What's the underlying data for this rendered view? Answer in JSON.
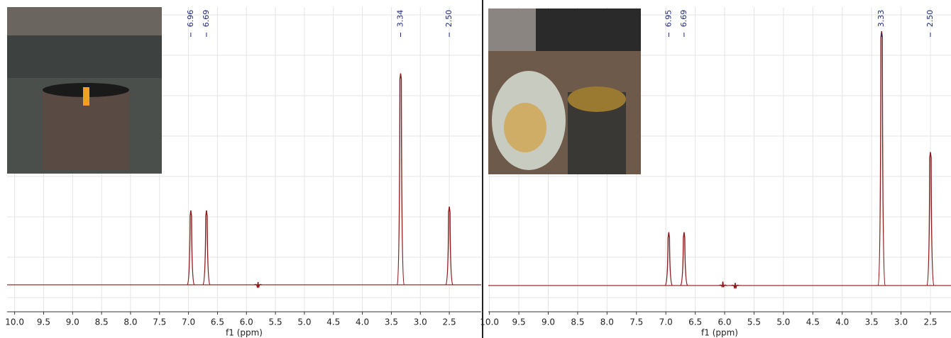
{
  "chart_data": [
    {
      "type": "spectrum",
      "x_title": "f1 (ppm)",
      "x": [
        6.96,
        6.69,
        5.8,
        3.34,
        2.5
      ],
      "x_labels": [
        "6.96",
        "6.69",
        null,
        "3.34",
        "2.50"
      ],
      "values": [
        27.6,
        27.6,
        1,
        78.4,
        29
      ],
      "color": "#8b1a1a",
      "xlim": [
        10.13,
        1.95
      ],
      "ylim": [
        -10,
        103
      ],
      "xticks": [
        {
          "value": 10,
          "label": "10.0"
        },
        9.5,
        {
          "value": 9,
          "label": "9.0"
        },
        8.5,
        {
          "value": 8,
          "label": "8.0"
        },
        7.5,
        {
          "value": 7,
          "label": "7.0"
        },
        6.5,
        {
          "value": 6,
          "label": "6.0"
        },
        5.5,
        {
          "value": 5,
          "label": "5.0"
        },
        4.5,
        {
          "value": 4,
          "label": "4.0"
        },
        3.5,
        {
          "value": 3,
          "label": "3.0"
        },
        2.5
      ],
      "grid": true
    },
    {
      "type": "spectrum",
      "x_title": "f1 (ppm)",
      "x": [
        6.95,
        6.69,
        6.03,
        5.82,
        3.33,
        2.5
      ],
      "x_labels": [
        "6.95",
        "6.69",
        null,
        null,
        "3.33",
        "2.50"
      ],
      "values": [
        20.3,
        20.3,
        1.5,
        1,
        96.8,
        50.8
      ],
      "color": "#8b1a1a",
      "xlim": [
        10.02,
        2.15
      ],
      "ylim": [
        -10,
        106
      ],
      "xticks": [
        {
          "value": 10,
          "label": "10.0"
        },
        9.5,
        {
          "value": 9,
          "label": "9.0"
        },
        8.5,
        {
          "value": 8,
          "label": "8.0"
        },
        7.5,
        {
          "value": 7,
          "label": "7.0"
        },
        6.5,
        {
          "value": 6,
          "label": "6.0"
        },
        5.5,
        {
          "value": 5,
          "label": "5.0"
        },
        4.5,
        {
          "value": 4,
          "label": "4.0"
        },
        3.5,
        {
          "value": 3,
          "label": "3.0"
        },
        2.5
      ],
      "grid": true
    }
  ]
}
